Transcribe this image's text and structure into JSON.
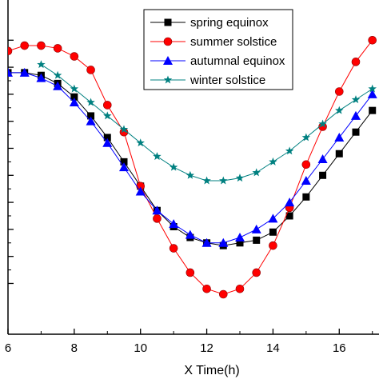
{
  "chart_data": {
    "type": "line",
    "xlabel": "X Time(h)",
    "ylabel": "",
    "xlim": [
      6,
      17.2
    ],
    "ylim": [
      0,
      100
    ],
    "x_ticks": [
      6,
      8,
      10,
      12,
      14,
      16
    ],
    "x_tick_labels": [
      "6",
      "8",
      "10",
      "12",
      "14",
      "16"
    ],
    "y_ticks": [
      4,
      14,
      24,
      34,
      44,
      54,
      64,
      74,
      84,
      94
    ],
    "grid": false,
    "legend_position": "top-right",
    "series": [
      {
        "name": "spring equinox",
        "color": "#000000",
        "marker": "square",
        "x": [
          6.0,
          6.5,
          7.0,
          7.5,
          8.0,
          8.5,
          9.0,
          9.5,
          10.0,
          10.5,
          11.0,
          11.5,
          12.0,
          12.5,
          13.0,
          13.5,
          14.0,
          14.5,
          15.0,
          15.5,
          16.0,
          16.5,
          17.0
        ],
        "y": [
          82,
          82,
          81,
          78,
          73,
          66,
          58,
          49,
          40,
          31,
          25,
          21,
          19,
          18,
          19,
          20,
          23,
          29,
          36,
          44,
          52,
          60,
          68
        ]
      },
      {
        "name": "summer solstice",
        "color": "#ff0000",
        "marker": "circle",
        "x": [
          6.0,
          6.5,
          7.0,
          7.5,
          8.0,
          8.5,
          9.0,
          9.5,
          10.0,
          10.5,
          11.0,
          11.5,
          12.0,
          12.5,
          13.0,
          13.5,
          14.0,
          14.5,
          15.0,
          15.5,
          16.0,
          16.5,
          17.0
        ],
        "y": [
          90,
          92,
          92,
          91,
          88,
          83,
          70,
          60,
          40,
          28,
          17,
          8,
          2,
          0,
          2,
          8,
          18,
          32,
          48,
          62,
          75,
          86,
          94
        ]
      },
      {
        "name": "autumnal equinox",
        "color": "#0000ff",
        "marker": "triangle",
        "x": [
          6.0,
          6.5,
          7.0,
          7.5,
          8.0,
          8.5,
          9.0,
          9.5,
          10.0,
          10.5,
          11.0,
          11.5,
          12.0,
          12.5,
          13.0,
          13.5,
          14.0,
          14.5,
          15.0,
          15.5,
          16.0,
          16.5,
          17.0
        ],
        "y": [
          82,
          82,
          80,
          77,
          71,
          64,
          56,
          47,
          38,
          31,
          26,
          22,
          19,
          19,
          21,
          24,
          28,
          34,
          42,
          50,
          58,
          66,
          74
        ]
      },
      {
        "name": "winter solstice",
        "color": "#008080",
        "marker": "star",
        "x": [
          7.0,
          7.5,
          8.0,
          8.5,
          9.0,
          9.5,
          10.0,
          10.5,
          11.0,
          11.5,
          12.0,
          12.5,
          13.0,
          13.5,
          14.0,
          14.5,
          15.0,
          15.5,
          16.0,
          16.5,
          17.0
        ],
        "y": [
          85,
          81,
          76,
          71,
          66,
          61,
          56,
          51,
          47,
          44,
          42,
          42,
          43,
          45,
          49,
          53,
          58,
          63,
          68,
          72,
          76
        ]
      }
    ]
  }
}
